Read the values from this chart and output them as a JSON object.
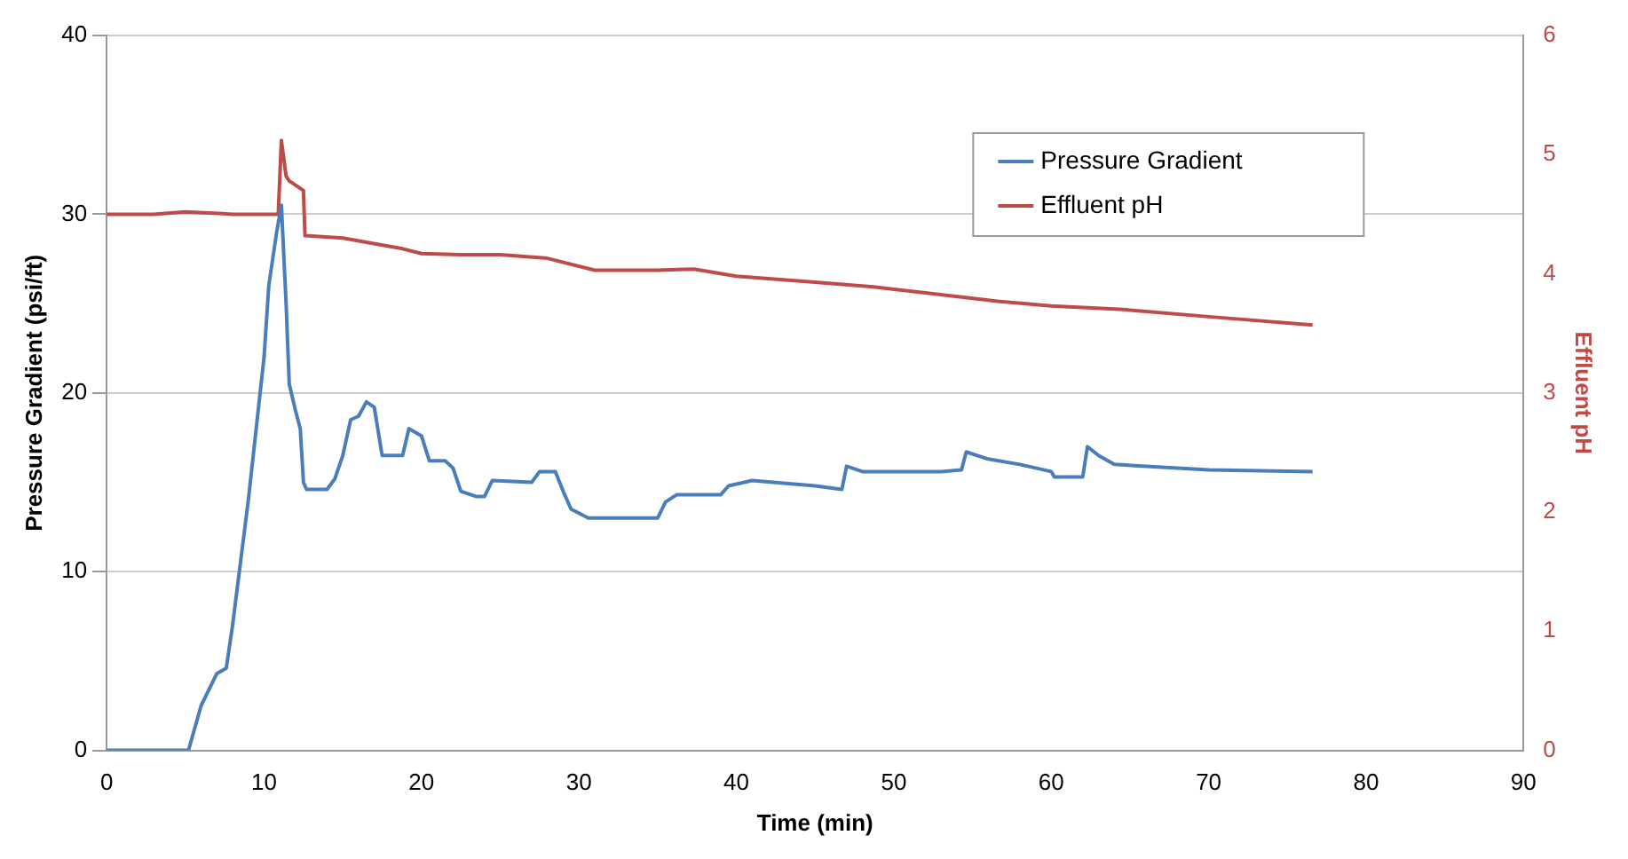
{
  "chart_data": {
    "type": "line",
    "xlabel": "Time (min)",
    "ylabel": "Pressure Gradient (psi/ft)",
    "y2label": "Effluent pH",
    "xlim": [
      0,
      90
    ],
    "xticks": [
      0,
      10,
      20,
      30,
      40,
      50,
      60,
      70,
      80,
      90
    ],
    "ylim": [
      0,
      40
    ],
    "yticks": [
      0,
      10,
      20,
      30,
      40
    ],
    "y2lim": [
      0,
      6
    ],
    "y2ticks": [
      0,
      1,
      2,
      3,
      4,
      5,
      6
    ],
    "grid": "y",
    "legend": "top right",
    "marker": "none",
    "line_style": "solid",
    "series": [
      {
        "name": "Pressure Gradient",
        "color": "#4a7ebb",
        "x": [
          0,
          5.2,
          6,
          7,
          7.6,
          8,
          8.5,
          9,
          9.5,
          10,
          10.3,
          10.8,
          11.1,
          11.4,
          11.6,
          12,
          12.3,
          12.5,
          12.7,
          14,
          14.5,
          15,
          15.5,
          16,
          16.5,
          17,
          17.5,
          18.8,
          19.2,
          20,
          20.5,
          21.5,
          22,
          22.5,
          23.5,
          24,
          24.5,
          27,
          27.5,
          28.5,
          29,
          29.5,
          30.6,
          35,
          35.5,
          36.2,
          39,
          39.5,
          41,
          45,
          46.7,
          47,
          48,
          53,
          54.3,
          54.6,
          56,
          58,
          60,
          60.2,
          62,
          62.3,
          63,
          64,
          70,
          76.6
        ],
        "values": [
          0,
          0,
          2.5,
          4.3,
          4.6,
          7,
          10.5,
          14,
          18,
          22,
          26,
          29,
          30.5,
          25,
          20.5,
          19,
          18,
          15,
          14.6,
          14.6,
          15.2,
          16.5,
          18.5,
          18.7,
          19.5,
          19.2,
          16.5,
          16.5,
          18,
          17.6,
          16.2,
          16.2,
          15.8,
          14.5,
          14.2,
          14.2,
          15.1,
          15,
          15.6,
          15.6,
          14.5,
          13.5,
          13,
          13,
          13.9,
          14.3,
          14.3,
          14.8,
          15.1,
          14.8,
          14.6,
          15.9,
          15.6,
          15.6,
          15.7,
          16.7,
          16.3,
          16,
          15.6,
          15.3,
          15.3,
          17,
          16.5,
          16,
          15.7,
          15.6
        ]
      },
      {
        "name": "Effluent pH",
        "color": "#be4b48",
        "axis": "y2",
        "x": [
          0,
          3,
          5,
          8,
          10.9,
          11.1,
          11.4,
          11.6,
          12.5,
          12.6,
          15,
          18.8,
          20,
          22.4,
          25,
          28,
          31,
          35,
          37.3,
          40,
          45,
          48.7,
          52,
          56.6,
          60,
          64.6,
          70,
          76.6
        ],
        "values": [
          4.5,
          4.5,
          4.52,
          4.5,
          4.5,
          5.12,
          4.82,
          4.78,
          4.7,
          4.32,
          4.3,
          4.21,
          4.17,
          4.16,
          4.16,
          4.13,
          4.03,
          4.03,
          4.04,
          3.98,
          3.93,
          3.89,
          3.84,
          3.77,
          3.73,
          3.7,
          3.64,
          3.57
        ]
      }
    ]
  }
}
